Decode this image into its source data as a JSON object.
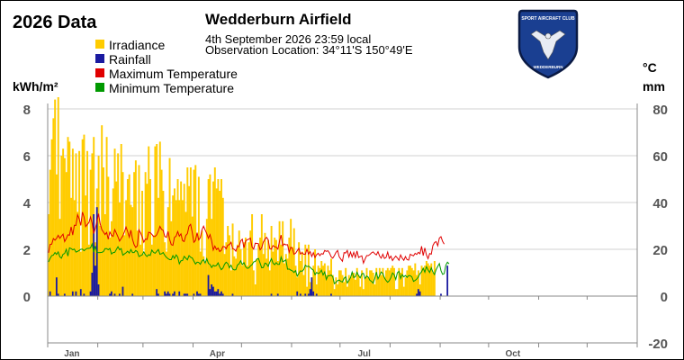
{
  "header": {
    "year_title": "2026 Data",
    "station_title": "Wedderburn Airfield",
    "datetime": "4th September 2026  23:59 local",
    "location": "Observation Location: 34°11'S 150°49'E"
  },
  "logo": {
    "name": "club-badge-logo",
    "top_text": "SPORT AIRCRAFT CLUB",
    "bottom_text": "WEDDERBURN",
    "fill_color": "#1a3f91",
    "rim_color": "#0a1a44"
  },
  "chart_data": {
    "type": "bar",
    "title": "Wedderburn Airfield",
    "left_unit": "kWh/m²",
    "right_unit_top": "°C",
    "right_unit_bottom": "mm",
    "left_ticks": [
      "8",
      "6",
      "4",
      "2",
      "0"
    ],
    "right_ticks": [
      "80",
      "60",
      "40",
      "20",
      "0",
      "-20"
    ],
    "left_ylim": [
      0,
      8
    ],
    "right_ylim": [
      -20,
      80
    ],
    "month_labels": [
      {
        "label": "Jan",
        "day": 15
      },
      {
        "label": "Apr",
        "day": 105
      },
      {
        "label": "Jul",
        "day": 196
      },
      {
        "label": "Oct",
        "day": 288
      }
    ],
    "days_in_year": 365,
    "last_day": 247,
    "grid": "horizontal",
    "legend": "top-left",
    "legend_entries": [
      {
        "label": "Irradiance",
        "color": "#ffcc00"
      },
      {
        "label": "Rainfall",
        "color": "#1a1aa0"
      },
      {
        "label": "Maximum Temperature",
        "color": "#e00000"
      },
      {
        "label": "Minimum Temperature",
        "color": "#009900"
      }
    ],
    "series": [
      {
        "name": "Irradiance",
        "axis": "left",
        "kind": "bar",
        "color": "#ffcc00",
        "values": [
          3.5,
          5.4,
          6.7,
          7.6,
          8.4,
          5.2,
          8.5,
          3.3,
          6.0,
          6.3,
          5.9,
          5.3,
          6.8,
          6.6,
          4.2,
          6.3,
          4.1,
          6.1,
          3.6,
          6.2,
          1.9,
          6.7,
          6.9,
          4.3,
          6.2,
          2.2,
          5.4,
          6.1,
          6.8,
          2.3,
          4.6,
          6.0,
          3.0,
          7.3,
          5.5,
          3.5,
          6.8,
          5.1,
          2.5,
          3.2,
          4.6,
          6.3,
          4.9,
          6.1,
          4.0,
          6.5,
          5.3,
          2.6,
          4.1,
          5.0,
          5.2,
          3.9,
          3.8,
          5.3,
          5.8,
          2.8,
          5.6,
          2.2,
          4.5,
          1.8,
          5.3,
          4.8,
          6.4,
          5.0,
          2.2,
          2.6,
          6.4,
          6.5,
          4.2,
          6.6,
          5.4,
          4.5,
          2.3,
          1.9,
          3.8,
          5.9,
          3.2,
          4.3,
          4.6,
          4.1,
          5.0,
          4.1,
          4.9,
          4.1,
          4.8,
          3.6,
          5.5,
          4.7,
          5.5,
          3.4,
          5.4,
          5.6,
          2.6,
          5.1,
          1.9,
          2.8,
          1.7,
          1.4,
          3.3,
          5.0,
          5.2,
          3.3,
          4.9,
          5.5,
          4.6,
          5.0,
          4.5,
          5.0,
          4.2,
          1.8,
          2.3,
          3.0,
          2.6,
          1.1,
          3.1,
          1.7,
          1.6,
          2.2,
          2.8,
          2.0,
          1.3,
          2.3,
          2.5,
          1.3,
          2.3,
          2.8,
          3.5,
          1.1,
          0.5,
          1.6,
          2.2,
          2.5,
          3.5,
          1.8,
          2.7,
          1.6,
          2.4,
          1.1,
          3.0,
          1.9,
          2.5,
          2.4,
          1.5,
          3.2,
          2.2,
          3.2,
          1.4,
          1.8,
          1.6,
          2.5,
          3.3,
          2.1,
          2.9,
          1.3,
          0.8,
          2.3,
          1.5,
          1.9,
          0.9,
          2.2,
          0.4,
          2.2,
          0.6,
          0.7,
          1.3,
          2.0,
          0.5,
          1.3,
          1.2,
          1.5,
          1.3,
          1.4,
          0.9,
          1.3,
          1.1,
          1.6,
          0.9,
          0.3,
          0.8,
          0.5,
          1.1,
          1.1,
          0.9,
          0.6,
          1.2,
          0.4,
          0.9,
          0.8,
          1.0,
          1.0,
          0.7,
          1.2,
          0.9,
          0.4,
          1.1,
          0.3,
          0.8,
          1.2,
          0.8,
          1.1,
          1.1,
          1.0,
          0.5,
          1.2,
          0.8,
          1.2,
          0.9,
          1.2,
          0.8,
          1.1,
          1.2,
          1.1,
          1.2,
          1.3,
          1.2,
          0.3,
          0.3,
          1.2,
          1.0,
          1.2,
          0.4,
          0.8,
          1.1,
          1.3,
          1.3,
          1.2,
          1.1,
          1.4,
          0.9,
          1.1,
          0.5,
          1.3,
          1.2,
          1.3,
          1.5,
          1.4,
          1.3,
          1.4,
          1.0,
          1.5
        ]
      },
      {
        "name": "Rainfall",
        "axis": "right",
        "kind": "bar",
        "color": "#1a1aa0",
        "values": [
          0,
          2,
          0,
          0,
          0,
          8,
          1,
          0,
          0,
          0,
          1,
          0,
          0,
          0,
          0,
          2,
          0,
          2,
          0,
          0,
          3,
          0,
          1,
          0,
          0,
          0,
          2,
          10,
          35,
          13,
          38,
          5,
          0,
          0,
          0,
          0,
          0,
          0,
          1,
          2,
          0,
          1,
          0,
          0,
          1,
          0,
          4,
          0,
          0,
          0,
          0,
          0,
          1,
          0,
          0,
          0,
          0,
          0,
          0,
          0,
          0,
          0,
          0,
          0,
          0,
          0,
          0,
          3,
          1,
          0,
          0,
          0,
          2,
          1,
          2,
          1,
          0,
          1,
          2,
          0,
          0,
          2,
          0,
          0,
          1,
          1,
          1,
          0,
          0,
          0,
          1,
          0,
          2,
          1,
          1,
          0,
          0,
          0,
          0,
          9,
          3,
          5,
          4,
          2,
          2,
          3,
          1,
          2,
          1,
          0,
          0,
          0,
          0,
          0,
          1,
          0,
          0,
          0,
          0,
          0,
          0,
          0,
          0,
          0,
          0,
          0,
          0,
          0,
          0,
          0,
          0,
          0,
          0,
          0,
          0,
          0,
          0,
          0,
          1,
          0,
          0,
          0,
          1,
          0,
          0,
          0,
          0,
          0,
          0,
          0,
          0,
          0,
          0,
          0,
          2,
          0,
          1,
          0,
          0,
          1,
          0,
          1,
          3,
          8,
          2,
          0,
          1,
          0,
          0,
          0,
          0,
          0,
          0,
          0,
          0,
          1,
          0,
          0,
          0,
          0,
          0,
          0,
          0,
          0,
          0,
          0,
          0,
          0,
          0,
          0,
          0,
          0,
          0,
          0,
          0,
          0,
          0,
          0,
          0,
          0,
          0,
          0,
          0,
          0,
          0,
          0,
          0,
          0,
          0,
          0,
          0,
          0,
          0,
          0,
          0,
          0,
          0,
          0,
          0,
          0,
          0,
          0,
          0,
          0,
          0,
          0,
          0,
          0,
          1,
          3,
          2,
          0,
          0,
          0,
          0,
          0,
          0,
          0,
          0,
          0,
          0,
          0,
          0,
          1,
          0,
          0,
          0,
          13,
          0,
          0,
          0,
          0,
          0,
          0,
          0
        ]
      },
      {
        "name": "Maximum Temperature",
        "axis": "right",
        "kind": "line",
        "color": "#e00000",
        "values": [
          18.5,
          22.1,
          22.2,
          24.6,
          23.9,
          24.7,
          26.0,
          24.7,
          25.6,
          26.5,
          23.3,
          24.6,
          26.2,
          26.0,
          29.6,
          26.1,
          30.3,
          30.2,
          34.8,
          33.0,
          30.2,
          35.9,
          33.8,
          29.7,
          30.6,
          31.4,
          33.8,
          31.2,
          26.7,
          29.0,
          32.0,
          35.2,
          30.9,
          28.4,
          27.4,
          26.3,
          27.2,
          24.3,
          27.4,
          26.0,
          25.5,
          28.4,
          26.9,
          25.3,
          23.5,
          24.6,
          25.7,
          27.4,
          29.5,
          27.6,
          25.2,
          28.2,
          24.3,
          22.0,
          20.8,
          21.5,
          28.3,
          27.1,
          25.3,
          23.0,
          24.4,
          24.2,
          27.3,
          27.1,
          26.4,
          25.5,
          25.5,
          26.2,
          27.8,
          29.8,
          28.5,
          28.1,
          25.5,
          25.1,
          27.6,
          24.2,
          22.0,
          21.7,
          25.1,
          25.6,
          27.6,
          25.6,
          26.6,
          23.7,
          23.3,
          25.9,
          26.7,
          29.9,
          30.7,
          27.2,
          23.0,
          23.8,
          27.1,
          24.0,
          25.0,
          28.3,
          29.9,
          28.2,
          26.7,
          24.7,
          26.3,
          23.7,
          19.7,
          21.4,
          19.9,
          20.5,
          19.0,
          19.6,
          21.2,
          21.1,
          20.2,
          21.8,
          22.0,
          23.0,
          20.3,
          20.0,
          19.2,
          21.3,
          21.1,
          23.6,
          24.3,
          20.6,
          23.4,
          24.1,
          24.3,
          24.8,
          21.0,
          20.1,
          22.6,
          22.5,
          22.4,
          19.8,
          20.6,
          23.1,
          24.3,
          25.1,
          24.1,
          20.3,
          20.1,
          21.6,
          21.1,
          20.9,
          20.1,
          23.3,
          26.1,
          21.5,
          22.3,
          21.9,
          22.0,
          18.7,
          20.9,
          20.4,
          17.9,
          18.3,
          19.4,
          20.4,
          18.0,
          18.6,
          17.9,
          17.9,
          20.0,
          17.9,
          19.0,
          16.9,
          18.6,
          16.5,
          17.7,
          18.3,
          17.3,
          18.2,
          17.9,
          19.5,
          19.1,
          19.4,
          18.4,
          16.8,
          16.2,
          17.3,
          18.7,
          19.5,
          16.8,
          15.8,
          14.9,
          18.6,
          18.4,
          19.5,
          16.7,
          18.8,
          16.7,
          18.7,
          16.5,
          19.3,
          16.5,
          16.9,
          17.2,
          14.1,
          15.8,
          17.3,
          17.3,
          17.8,
          18.5,
          18.9,
          18.1,
          17.6,
          19.0,
          17.1,
          16.2,
          17.9,
          16.1,
          16.5,
          18.8,
          16.1,
          17.1,
          15.2,
          16.2,
          17.1,
          16.3,
          15.3,
          17.6,
          16.2,
          15.3,
          16.9,
          15.6,
          15.4,
          17.9,
          17.5,
          17.2,
          18.3,
          17.8,
          18.7,
          18.1,
          21.3,
          17.3,
          20.6,
          17.6,
          16.0,
          18.2,
          17.9,
          21.6,
          22.9,
          23.3,
          21.5,
          24.8,
          25.4,
          23.4,
          22.2
        ]
      },
      {
        "name": "Minimum Temperature",
        "axis": "right",
        "kind": "line",
        "color": "#009900",
        "values": [
          14.6,
          16.1,
          17.3,
          17.5,
          18.6,
          17.8,
          18.9,
          16.8,
          16.2,
          17.9,
          18.2,
          20.0,
          17.1,
          20.6,
          20.3,
          19.8,
          20.1,
          18.8,
          19.1,
          19.5,
          20.0,
          20.1,
          19.4,
          20.0,
          20.4,
          20.4,
          20.6,
          22.3,
          18.8,
          21.4,
          18.6,
          18.6,
          18.6,
          18.7,
          19.0,
          20.3,
          20.3,
          19.8,
          20.4,
          18.0,
          18.6,
          18.7,
          19.9,
          21.1,
          19.8,
          20.3,
          17.5,
          18.0,
          18.5,
          19.2,
          18.4,
          19.9,
          18.6,
          18.6,
          19.5,
          19.0,
          16.9,
          17.3,
          17.6,
          18.9,
          17.6,
          16.9,
          17.7,
          17.4,
          19.7,
          18.7,
          18.3,
          19.1,
          19.9,
          17.9,
          18.1,
          18.6,
          17.4,
          16.6,
          16.0,
          15.6,
          15.6,
          17.3,
          16.1,
          17.6,
          16.7,
          13.8,
          15.1,
          15.2,
          17.0,
          16.2,
          15.5,
          17.3,
          16.6,
          16.3,
          15.0,
          13.7,
          14.5,
          14.4,
          13.6,
          15.0,
          15.6,
          14.1,
          16.0,
          14.0,
          13.5,
          12.2,
          13.2,
          12.8,
          13.1,
          14.2,
          12.5,
          11.3,
          12.0,
          13.6,
          14.5,
          13.9,
          12.1,
          13.2,
          11.6,
          11.2,
          11.3,
          13.3,
          13.8,
          15.1,
          13.5,
          14.3,
          12.6,
          11.9,
          12.0,
          12.9,
          13.4,
          14.6,
          14.8,
          15.8,
          16.1,
          14.1,
          12.1,
          12.2,
          14.1,
          13.8,
          12.7,
          14.5,
          16.0,
          14.1,
          13.4,
          14.3,
          13.5,
          13.6,
          16.7,
          14.7,
          15.0,
          15.5,
          11.5,
          11.6,
          11.1,
          10.8,
          10.1,
          10.9,
          8.5,
          9.7,
          10.8,
          10.6,
          11.3,
          13.2,
          12.6,
          12.8,
          12.3,
          11.6,
          11.1,
          9.1,
          10.1,
          9.6,
          10.0,
          11.1,
          9.0,
          10.3,
          7.1,
          8.7,
          8.7,
          9.0,
          8.3,
          5.3,
          5.9,
          6.6,
          6.9,
          6.3,
          6.0,
          7.6,
          8.2,
          5.6,
          6.7,
          7.9,
          10.3,
          7.9,
          8.3,
          10.2,
          8.7,
          7.8,
          9.5,
          9.7,
          7.5,
          8.6,
          8.1,
          6.7,
          6.3,
          5.5,
          7.5,
          10.3,
          7.4,
          8.8,
          10.3,
          9.7,
          7.8,
          6.7,
          5.9,
          6.6,
          7.9,
          9.9,
          9.2,
          7.1,
          10.0,
          10.6,
          7.5,
          9.2,
          8.2,
          8.8,
          8.0,
          8.8,
          8.7,
          8.2,
          6.3,
          6.7,
          7.3,
          8.2,
          9.6,
          10.4,
          11.9,
          10.2,
          12.6,
          11.2,
          10.1,
          12.1,
          10.3,
          9.2,
          11.3,
          12.7,
          13.9,
          10.9,
          9.3,
          9.6,
          13.2,
          14.5,
          13.8
        ]
      }
    ]
  }
}
